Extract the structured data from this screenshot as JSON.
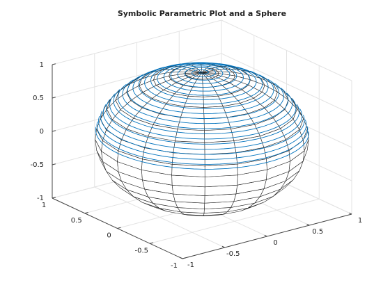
{
  "chart_data": {
    "type": "surface3d",
    "title": "Symbolic Parametric Plot and a Sphere",
    "xlim": [
      -1,
      1
    ],
    "ylim": [
      -1,
      1
    ],
    "zlim": [
      -1,
      1
    ],
    "xticks": [
      -1,
      -0.5,
      0,
      0.5,
      1
    ],
    "yticks": [
      -1,
      -0.5,
      0,
      0.5,
      1
    ],
    "zticks": [
      -1,
      -0.5,
      0,
      0.5,
      1
    ],
    "grid": true,
    "surface_edge_color": "#222222",
    "surface_color": "#ffffff",
    "curve_color": "#0072bd"
  }
}
